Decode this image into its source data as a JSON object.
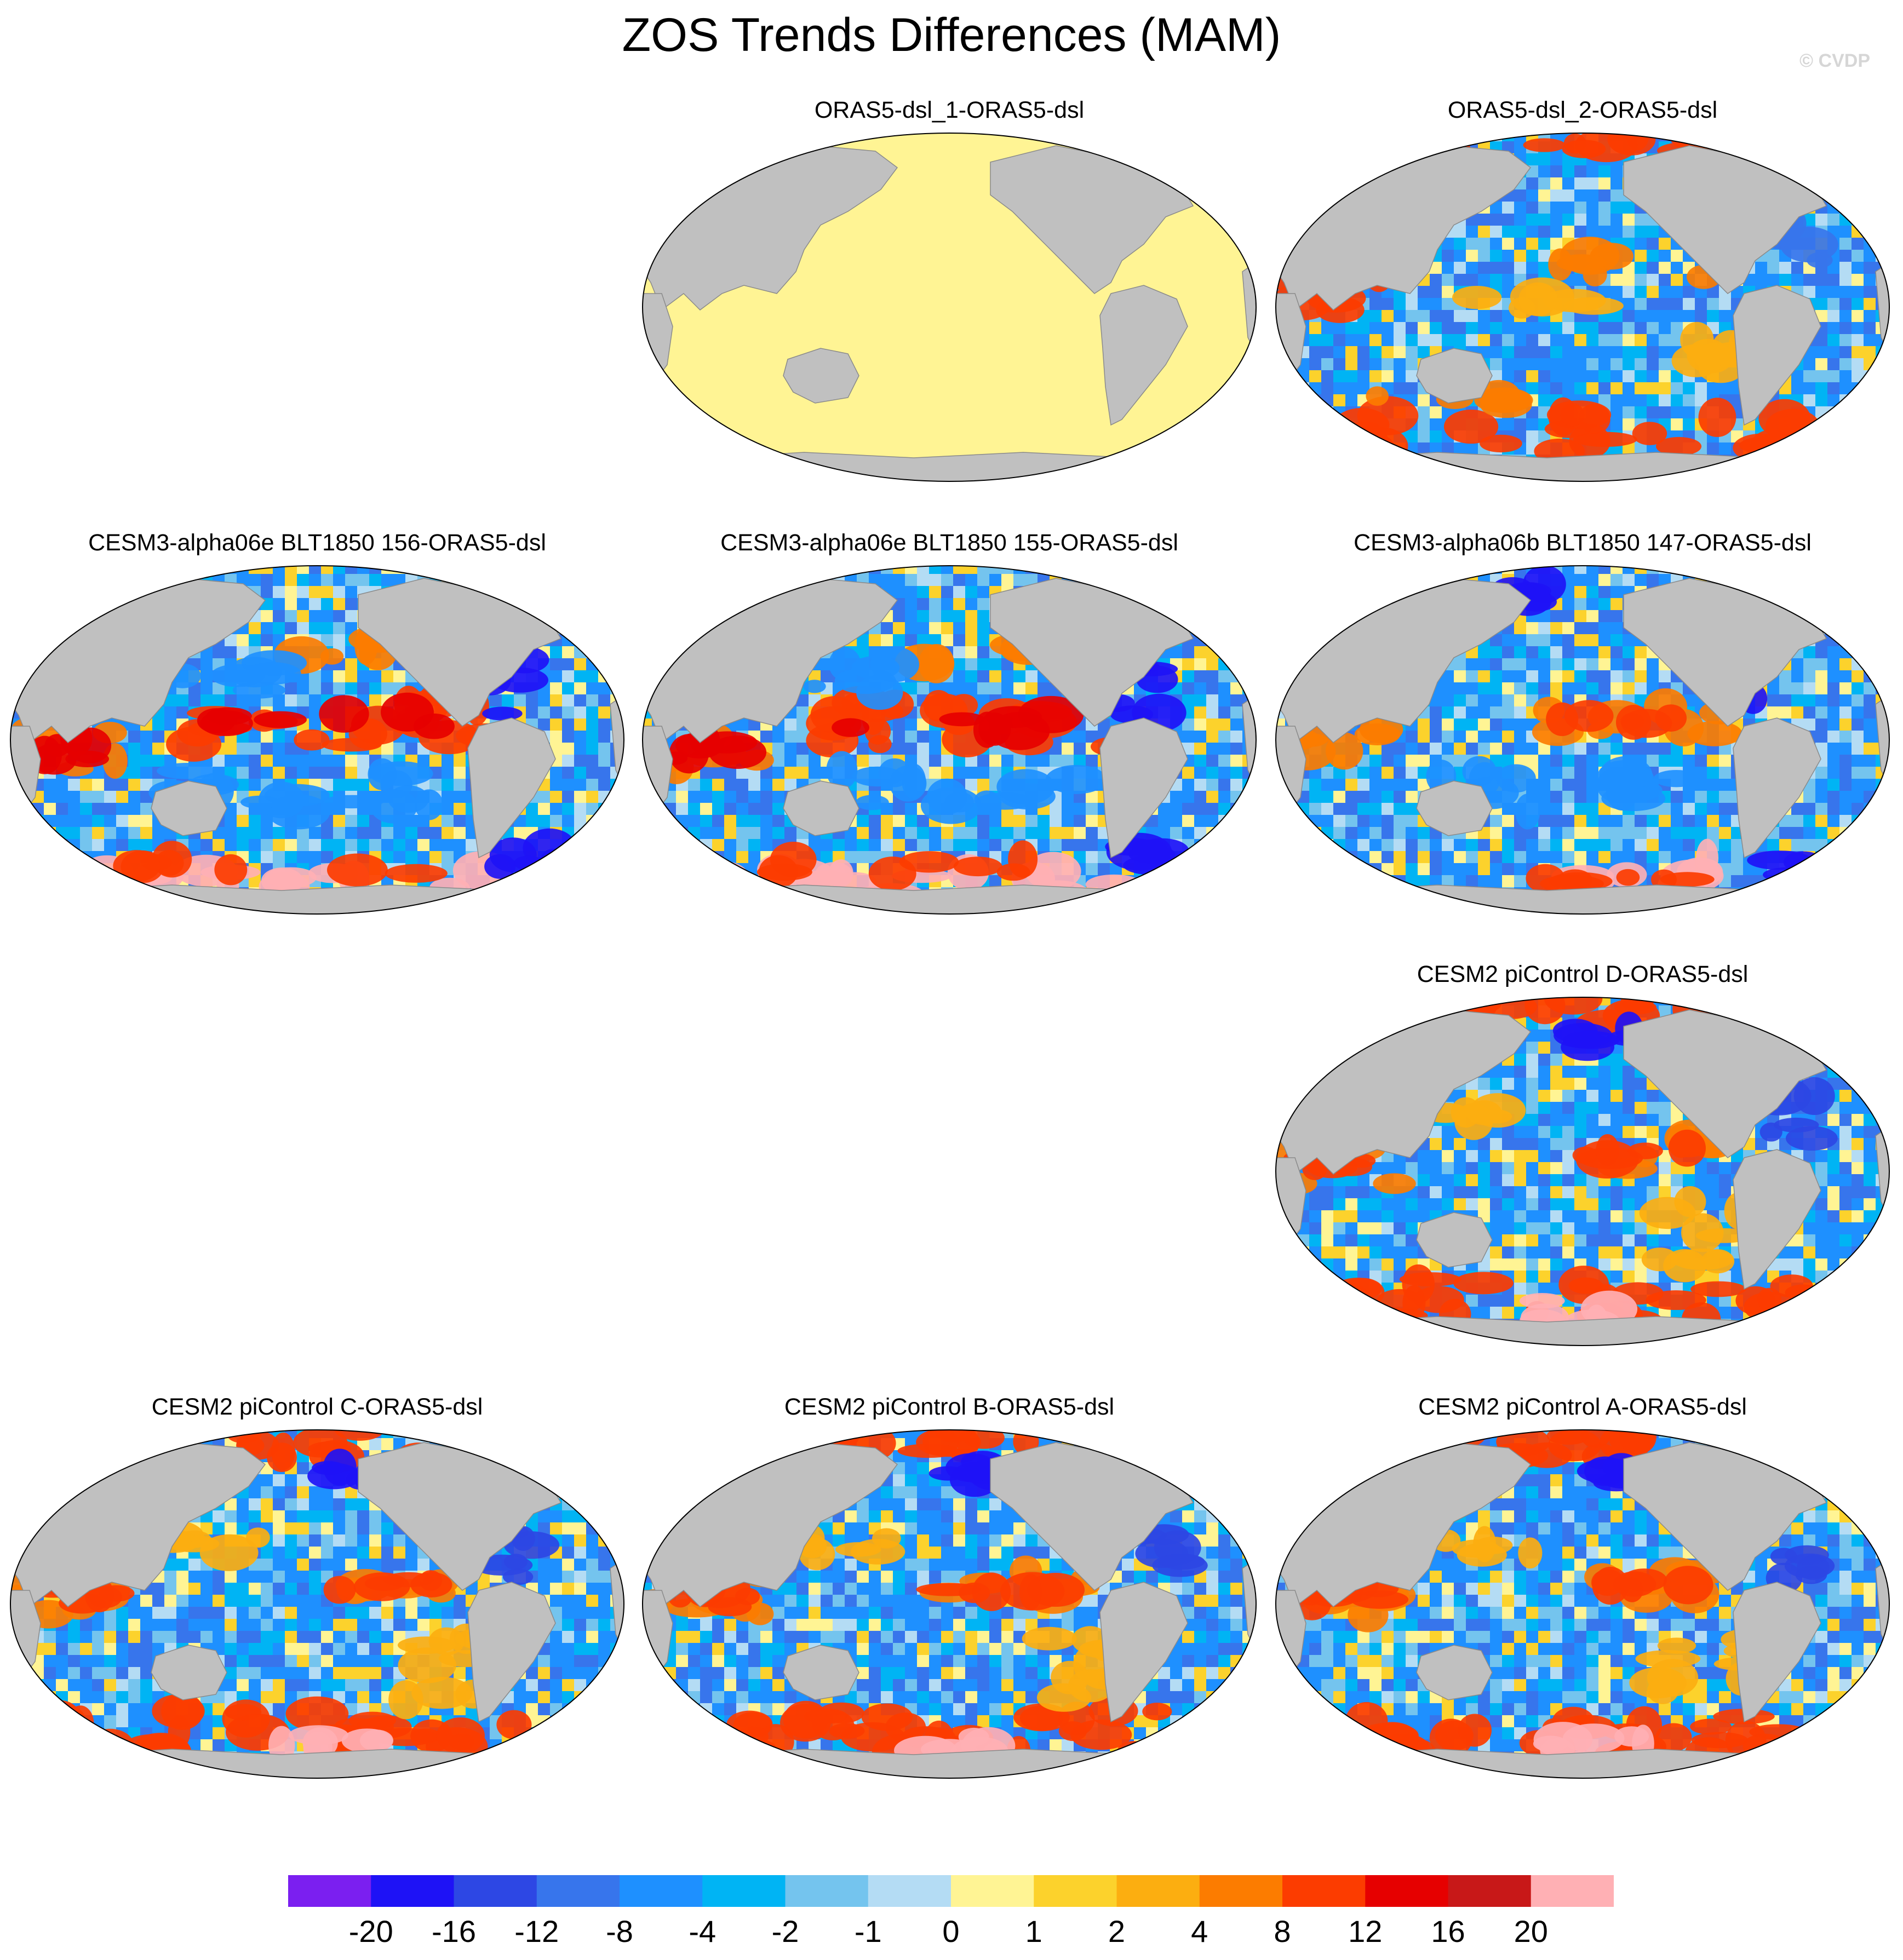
{
  "figure": {
    "title": "ZOS Trends Differences (MAM)",
    "credit": "© CVDP"
  },
  "colors": {
    "land": "#c0c0c0",
    "ocean_uniform": "#fff494"
  },
  "panels": [
    {
      "id": "oras5-dsl-1",
      "title": "ORAS5-dsl_1-ORAS5-dsl",
      "pattern": "uniform-zero"
    },
    {
      "id": "oras5-dsl-2",
      "title": "ORAS5-dsl_2-ORAS5-dsl",
      "pattern": "mixed"
    },
    {
      "id": "cesm3-156",
      "title": "CESM3-alpha06e BLT1850 156-ORAS5-dsl",
      "pattern": "el-nino-strong"
    },
    {
      "id": "cesm3-155",
      "title": "CESM3-alpha06e BLT1850 155-ORAS5-dsl",
      "pattern": "el-nino-strong"
    },
    {
      "id": "cesm3-147",
      "title": "CESM3-alpha06b BLT1850 147-ORAS5-dsl",
      "pattern": "el-nino-weak"
    },
    {
      "id": "cesm2-d",
      "title": "CESM2 piControl D-ORAS5-dsl",
      "pattern": "mixed-warm"
    },
    {
      "id": "cesm2-c",
      "title": "CESM2 piControl C-ORAS5-dsl",
      "pattern": "mixed-warm"
    },
    {
      "id": "cesm2-b",
      "title": "CESM2 piControl B-ORAS5-dsl",
      "pattern": "mixed-warm"
    },
    {
      "id": "cesm2-a",
      "title": "CESM2 piControl A-ORAS5-dsl",
      "pattern": "mixed-warm"
    }
  ],
  "colorbar": {
    "colors": [
      "#7b1ff0",
      "#1e12f6",
      "#2d47e4",
      "#3775ec",
      "#1e90ff",
      "#00b4f4",
      "#74c4ee",
      "#b4dcf4",
      "#fff494",
      "#fcd22c",
      "#fcae10",
      "#fc7c00",
      "#fc3c00",
      "#e60000",
      "#c81818",
      "#ffb0b4"
    ],
    "labels": [
      "-20",
      "-16",
      "-12",
      "-8",
      "-4",
      "-2",
      "-1",
      "0",
      "1",
      "2",
      "4",
      "8",
      "12",
      "16",
      "20"
    ]
  }
}
